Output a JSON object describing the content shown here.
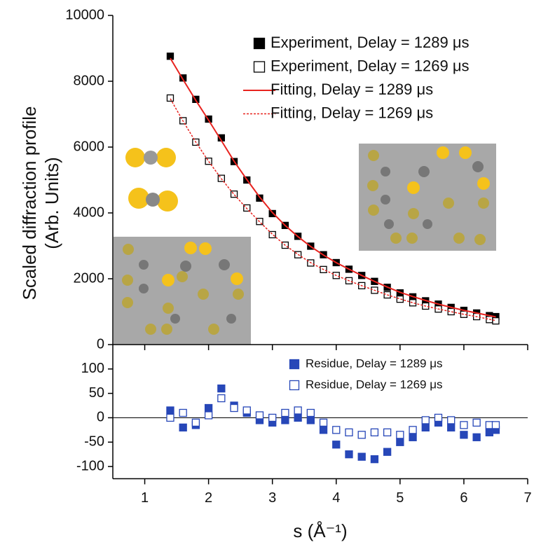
{
  "chart_data": [
    {
      "type": "line",
      "y_label": "Scaled diffraction profile",
      "y_label_2": "(Arb. Units)",
      "xlim": [
        0.5,
        7
      ],
      "ylim": [
        0,
        10000
      ],
      "yticks": [
        0,
        2000,
        4000,
        6000,
        8000,
        10000
      ],
      "legend": "upper right",
      "x": [
        1.4,
        1.6,
        1.8,
        2.0,
        2.2,
        2.4,
        2.6,
        2.8,
        3.0,
        3.2,
        3.4,
        3.6,
        3.8,
        4.0,
        4.2,
        4.4,
        4.6,
        4.8,
        5.0,
        5.2,
        5.4,
        5.6,
        5.8,
        6.0,
        6.2,
        6.4,
        6.5
      ],
      "series": [
        {
          "name": "Experiment, Delay = 1289 μs",
          "color": "#000000",
          "marker": "filled-square",
          "values": [
            8760,
            8100,
            7450,
            6850,
            6280,
            5560,
            5000,
            4450,
            3980,
            3620,
            3290,
            2990,
            2730,
            2490,
            2290,
            2100,
            1920,
            1740,
            1570,
            1450,
            1330,
            1230,
            1130,
            1040,
            960,
            880,
            850
          ]
        },
        {
          "name": "Experiment, Delay = 1269 μs",
          "color": "#000000",
          "marker": "open-square",
          "values": [
            7490,
            6800,
            6150,
            5570,
            5050,
            4570,
            4150,
            3740,
            3340,
            3020,
            2730,
            2480,
            2280,
            2100,
            1940,
            1790,
            1650,
            1510,
            1380,
            1270,
            1170,
            1080,
            1000,
            920,
            850,
            760,
            720
          ]
        },
        {
          "name": "Fitting, Delay = 1289 μs",
          "color": "#e8231f",
          "line": "solid",
          "values": [
            8700,
            8050,
            7420,
            6820,
            6200,
            5570,
            5010,
            4480,
            4010,
            3620,
            3280,
            2980,
            2720,
            2490,
            2290,
            2100,
            1920,
            1750,
            1590,
            1460,
            1340,
            1230,
            1130,
            1040,
            960,
            880,
            840
          ]
        },
        {
          "name": "Fitting, Delay = 1269 μs",
          "color": "#e8231f",
          "line": "dotted",
          "values": [
            7470,
            6790,
            6150,
            5570,
            5040,
            4560,
            4130,
            3730,
            3350,
            3020,
            2740,
            2490,
            2280,
            2100,
            1940,
            1790,
            1650,
            1510,
            1390,
            1270,
            1170,
            1080,
            1000,
            920,
            850,
            770,
            730
          ]
        }
      ]
    },
    {
      "type": "scatter",
      "x_label": "s (Å⁻¹)",
      "xlim": [
        0.5,
        7
      ],
      "xticks": [
        1,
        2,
        3,
        4,
        5,
        6,
        7
      ],
      "ylim": [
        -125,
        150
      ],
      "yticks": [
        -100,
        -50,
        0,
        50,
        100
      ],
      "zero_line": true,
      "legend": "upper right",
      "x": [
        1.4,
        1.6,
        1.8,
        2.0,
        2.2,
        2.4,
        2.6,
        2.8,
        3.0,
        3.2,
        3.4,
        3.6,
        3.8,
        4.0,
        4.2,
        4.4,
        4.6,
        4.8,
        5.0,
        5.2,
        5.4,
        5.6,
        5.8,
        6.0,
        6.2,
        6.4,
        6.5
      ],
      "series": [
        {
          "name": "Residue, Delay = 1289 μs",
          "color": "#2747b8",
          "marker": "filled-square",
          "values": [
            15,
            -20,
            -15,
            20,
            60,
            25,
            10,
            -5,
            -10,
            -5,
            0,
            -5,
            -25,
            -55,
            -75,
            -80,
            -85,
            -70,
            -50,
            -40,
            -20,
            -10,
            -20,
            -35,
            -40,
            -30,
            -25
          ]
        },
        {
          "name": "Residue, Delay = 1269 μs",
          "color": "#2747b8",
          "marker": "open-square",
          "values": [
            0,
            10,
            -10,
            5,
            40,
            20,
            15,
            5,
            0,
            10,
            15,
            10,
            -10,
            -25,
            -30,
            -35,
            -30,
            -30,
            -35,
            -25,
            -5,
            0,
            -5,
            -15,
            -10,
            -15,
            -15
          ]
        }
      ]
    }
  ]
}
